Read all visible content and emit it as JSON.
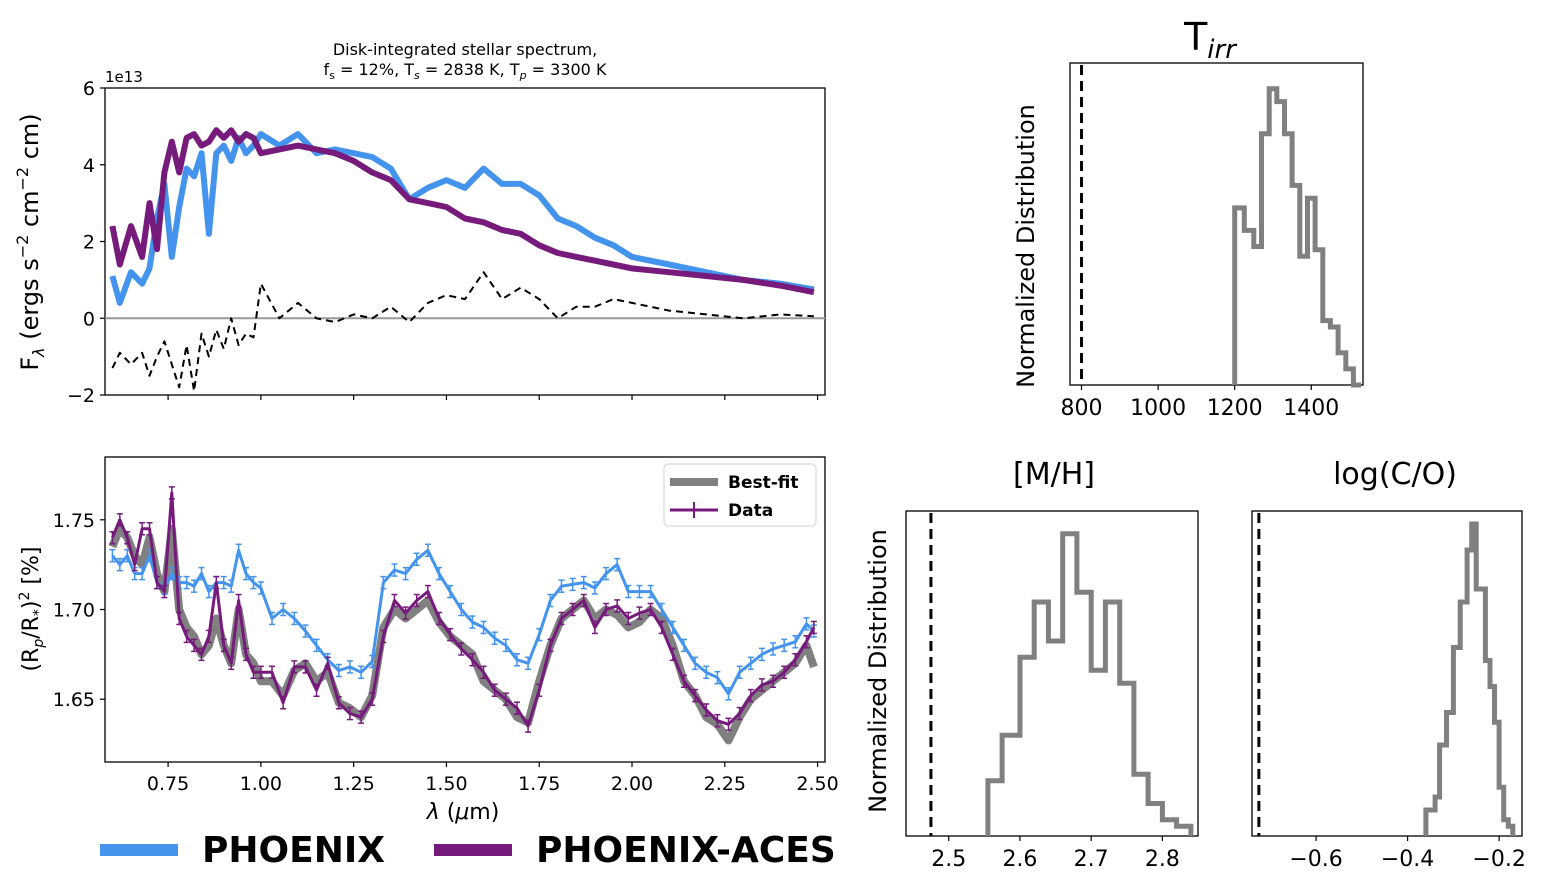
{
  "colors": {
    "phoenix": "#4494ee",
    "aces": "#761b7c",
    "bestfit": "#808080",
    "residual": "#000000",
    "zero_line": "#999999"
  },
  "legend_bottom": {
    "phoenix": "PHOENIX",
    "aces": "PHOENIX-ACES"
  },
  "chart_data": [
    {
      "id": "stellar_spectrum",
      "type": "line",
      "title_line1": "Disk-integrated stellar spectrum,",
      "title_line2": "f_s = 12%, T_s = 2838 K, T_p = 3300 K",
      "ylabel": "F_λ (ergs s^-2 cm^-2 cm)",
      "offset_label": "1e13",
      "xlim": [
        0.58,
        2.52
      ],
      "ylim": [
        -2,
        6
      ],
      "yticks": [
        -2,
        0,
        2,
        4,
        6
      ],
      "yscale_note": "values in units of 1e13",
      "x": [
        0.6,
        0.62,
        0.65,
        0.68,
        0.7,
        0.72,
        0.74,
        0.76,
        0.78,
        0.8,
        0.82,
        0.84,
        0.86,
        0.88,
        0.9,
        0.92,
        0.94,
        0.96,
        0.98,
        1.0,
        1.05,
        1.1,
        1.15,
        1.2,
        1.25,
        1.3,
        1.35,
        1.4,
        1.45,
        1.5,
        1.55,
        1.6,
        1.65,
        1.7,
        1.75,
        1.8,
        1.85,
        1.9,
        1.95,
        2.0,
        2.1,
        2.2,
        2.3,
        2.4,
        2.49
      ],
      "series": [
        {
          "name": "PHOENIX",
          "key": "phoenix",
          "values": [
            1.1,
            0.4,
            1.2,
            0.9,
            1.3,
            2.6,
            3.5,
            1.6,
            2.9,
            3.9,
            3.7,
            4.3,
            2.2,
            4.3,
            4.5,
            4.1,
            4.7,
            4.3,
            4.5,
            4.8,
            4.5,
            4.8,
            4.3,
            4.4,
            4.3,
            4.2,
            3.9,
            3.1,
            3.4,
            3.6,
            3.4,
            3.9,
            3.5,
            3.5,
            3.2,
            2.6,
            2.4,
            2.1,
            1.9,
            1.6,
            1.4,
            1.2,
            1.0,
            0.9,
            0.75
          ]
        },
        {
          "name": "PHOENIX-ACES",
          "key": "aces",
          "values": [
            2.4,
            1.4,
            2.4,
            1.6,
            3.0,
            1.8,
            3.8,
            4.6,
            3.8,
            4.7,
            4.8,
            4.5,
            4.6,
            4.9,
            4.7,
            4.9,
            4.6,
            4.8,
            4.7,
            4.3,
            4.4,
            4.5,
            4.4,
            4.3,
            4.1,
            3.8,
            3.6,
            3.1,
            3.0,
            2.9,
            2.6,
            2.5,
            2.3,
            2.2,
            1.9,
            1.7,
            1.6,
            1.5,
            1.4,
            1.3,
            1.2,
            1.1,
            1.0,
            0.85,
            0.68
          ]
        },
        {
          "key": "residual",
          "values": [
            -1.3,
            -0.9,
            -1.2,
            -0.9,
            -1.5,
            -1.0,
            -0.6,
            -1.2,
            -1.8,
            -0.7,
            -1.9,
            -0.4,
            -1.0,
            -0.3,
            -0.8,
            0.0,
            -0.7,
            -0.4,
            -0.5,
            0.9,
            0.0,
            0.4,
            0.0,
            -0.1,
            0.1,
            0.0,
            0.3,
            -0.1,
            0.4,
            0.6,
            0.5,
            1.2,
            0.5,
            0.8,
            0.5,
            0.0,
            0.3,
            0.3,
            0.5,
            0.4,
            0.2,
            0.1,
            0.0,
            0.1,
            0.05
          ]
        }
      ]
    },
    {
      "id": "transmission_spectrum",
      "type": "line",
      "xlabel": "λ (μm)",
      "ylabel": "(R_p/R_*)^2 [%]",
      "xlim": [
        0.58,
        2.52
      ],
      "ylim": [
        1.615,
        1.785
      ],
      "xticks": [
        0.75,
        1.0,
        1.25,
        1.5,
        1.75,
        2.0,
        2.25,
        2.5
      ],
      "xtick_labels": [
        "0.75",
        "1.00",
        "1.25",
        "1.50",
        "1.75",
        "2.00",
        "2.25",
        "2.50"
      ],
      "yticks": [
        1.65,
        1.7,
        1.75
      ],
      "ytick_labels": [
        "1.65",
        "1.70",
        "1.75"
      ],
      "legend_position": "top-right",
      "legend": {
        "bestfit": "Best-fit",
        "data": "Data"
      },
      "x": [
        0.6,
        0.62,
        0.64,
        0.66,
        0.68,
        0.7,
        0.72,
        0.74,
        0.76,
        0.78,
        0.8,
        0.82,
        0.84,
        0.86,
        0.88,
        0.9,
        0.92,
        0.94,
        0.96,
        0.98,
        1.0,
        1.03,
        1.06,
        1.09,
        1.12,
        1.15,
        1.18,
        1.21,
        1.24,
        1.27,
        1.3,
        1.33,
        1.36,
        1.39,
        1.42,
        1.45,
        1.48,
        1.51,
        1.54,
        1.57,
        1.6,
        1.63,
        1.66,
        1.69,
        1.72,
        1.75,
        1.78,
        1.81,
        1.84,
        1.87,
        1.9,
        1.93,
        1.96,
        1.99,
        2.02,
        2.05,
        2.08,
        2.11,
        2.14,
        2.17,
        2.2,
        2.23,
        2.26,
        2.29,
        2.32,
        2.35,
        2.38,
        2.41,
        2.44,
        2.47,
        2.49
      ],
      "series": [
        {
          "name": "Best-fit",
          "key": "bestfit",
          "values": [
            1.735,
            1.745,
            1.74,
            1.73,
            1.725,
            1.74,
            1.72,
            1.71,
            1.745,
            1.7,
            1.69,
            1.685,
            1.675,
            1.68,
            1.695,
            1.68,
            1.67,
            1.7,
            1.675,
            1.67,
            1.66,
            1.66,
            1.652,
            1.666,
            1.67,
            1.66,
            1.665,
            1.648,
            1.645,
            1.64,
            1.652,
            1.69,
            1.7,
            1.695,
            1.7,
            1.705,
            1.693,
            1.685,
            1.68,
            1.675,
            1.66,
            1.655,
            1.65,
            1.64,
            1.637,
            1.66,
            1.68,
            1.695,
            1.7,
            1.705,
            1.695,
            1.7,
            1.697,
            1.69,
            1.693,
            1.7,
            1.695,
            1.68,
            1.66,
            1.652,
            1.64,
            1.636,
            1.627,
            1.64,
            1.65,
            1.655,
            1.66,
            1.665,
            1.67,
            1.68,
            1.668
          ]
        },
        {
          "name": "Data",
          "key": "aces",
          "values": [
            1.74,
            1.75,
            1.74,
            1.725,
            1.745,
            1.745,
            1.715,
            1.71,
            1.765,
            1.695,
            1.685,
            1.68,
            1.675,
            1.685,
            1.715,
            1.68,
            1.67,
            1.705,
            1.675,
            1.665,
            1.665,
            1.665,
            1.648,
            1.668,
            1.668,
            1.655,
            1.67,
            1.648,
            1.642,
            1.64,
            1.65,
            1.685,
            1.705,
            1.698,
            1.705,
            1.71,
            1.695,
            1.686,
            1.678,
            1.672,
            1.665,
            1.655,
            1.65,
            1.645,
            1.635,
            1.655,
            1.68,
            1.695,
            1.7,
            1.705,
            1.69,
            1.7,
            1.702,
            1.695,
            1.698,
            1.7,
            1.69,
            1.675,
            1.66,
            1.652,
            1.644,
            1.638,
            1.636,
            1.642,
            1.652,
            1.658,
            1.66,
            1.665,
            1.672,
            1.682,
            1.69
          ]
        },
        {
          "name": "PHOENIX",
          "key": "phoenix",
          "values": [
            1.73,
            1.725,
            1.73,
            1.72,
            1.72,
            1.73,
            1.715,
            1.712,
            1.72,
            1.715,
            1.715,
            1.713,
            1.72,
            1.71,
            1.715,
            1.715,
            1.713,
            1.733,
            1.72,
            1.715,
            1.712,
            1.695,
            1.7,
            1.695,
            1.688,
            1.68,
            1.672,
            1.666,
            1.668,
            1.665,
            1.671,
            1.715,
            1.722,
            1.72,
            1.728,
            1.733,
            1.72,
            1.71,
            1.7,
            1.693,
            1.69,
            1.684,
            1.68,
            1.672,
            1.67,
            1.686,
            1.705,
            1.713,
            1.714,
            1.715,
            1.712,
            1.72,
            1.725,
            1.71,
            1.71,
            1.71,
            1.7,
            1.69,
            1.68,
            1.67,
            1.665,
            1.662,
            1.653,
            1.665,
            1.67,
            1.675,
            1.678,
            1.68,
            1.682,
            1.692,
            1.688
          ]
        }
      ]
    },
    {
      "id": "posterior_tirr",
      "type": "histogram",
      "title": "T_irr",
      "ylabel": "Normalized Distribution",
      "xlim": [
        770,
        1535
      ],
      "xticks": [
        800,
        1000,
        1200,
        1400
      ],
      "xtick_labels": [
        "800",
        "1000",
        "1200",
        "1400"
      ],
      "reference_value": 800,
      "bin_edges": [
        1200,
        1225,
        1250,
        1270,
        1290,
        1310,
        1330,
        1350,
        1370,
        1390,
        1410,
        1430,
        1450,
        1470,
        1490,
        1510,
        1530
      ],
      "counts": [
        0.55,
        0.48,
        0.43,
        0.78,
        0.92,
        0.88,
        0.78,
        0.62,
        0.4,
        0.58,
        0.42,
        0.2,
        0.18,
        0.1,
        0.05,
        0.0
      ]
    },
    {
      "id": "posterior_mh",
      "type": "histogram",
      "title": "[M/H]",
      "ylabel": "Normalized Distribution",
      "xlim": [
        2.44,
        2.85
      ],
      "xticks": [
        2.5,
        2.6,
        2.7,
        2.8
      ],
      "xtick_labels": [
        "2.5",
        "2.6",
        "2.7",
        "2.8"
      ],
      "reference_value": 2.475,
      "bin_edges": [
        2.555,
        2.575,
        2.6,
        2.62,
        2.64,
        2.66,
        2.68,
        2.7,
        2.72,
        2.74,
        2.76,
        2.78,
        2.8,
        2.82,
        2.84
      ],
      "counts": [
        0.17,
        0.31,
        0.55,
        0.72,
        0.6,
        0.93,
        0.75,
        0.51,
        0.72,
        0.47,
        0.19,
        0.1,
        0.05,
        0.03
      ]
    },
    {
      "id": "posterior_logco",
      "type": "histogram",
      "title": "log(C/O)",
      "xlim": [
        -0.74,
        -0.15
      ],
      "xticks": [
        -0.6,
        -0.4,
        -0.2
      ],
      "xtick_labels": [
        "−0.6",
        "−0.4",
        "−0.2"
      ],
      "reference_value": -0.725,
      "bin_edges": [
        -0.36,
        -0.34,
        -0.33,
        -0.315,
        -0.3,
        -0.285,
        -0.27,
        -0.26,
        -0.25,
        -0.24,
        -0.23,
        -0.22,
        -0.21,
        -0.2,
        -0.19,
        -0.18,
        -0.17
      ],
      "counts": [
        0.08,
        0.12,
        0.28,
        0.38,
        0.58,
        0.72,
        0.88,
        0.96,
        0.76,
        0.76,
        0.54,
        0.46,
        0.35,
        0.15,
        0.05,
        0.03
      ]
    }
  ]
}
